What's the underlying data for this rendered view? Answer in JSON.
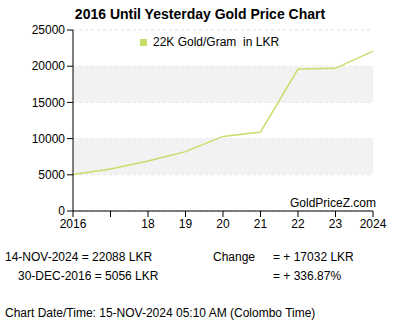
{
  "chart_data": {
    "type": "line",
    "title": "2016 Until Yesterday Gold Price Chart",
    "categories": [
      "2016",
      null,
      "18",
      "19",
      "20",
      "21",
      "22",
      "23",
      "2024"
    ],
    "series": [
      {
        "name": "22K Gold/Gram  in LKR",
        "color": "#c5de6a",
        "values": [
          5056,
          5800,
          6900,
          8200,
          10300,
          10900,
          19600,
          19700,
          22088
        ]
      }
    ],
    "ylim": [
      0,
      25000
    ],
    "yticks": [
      0,
      5000,
      10000,
      15000,
      20000,
      25000
    ],
    "grid": true,
    "annotations": [
      "GoldPriceZ.com",
      "14-NOV-2024 = 22088 LKR",
      "30-DEC-2016 = 5056 LKR",
      "Change",
      "= + 17032 LKR",
      "= + 336.87%",
      "Chart Date/Time: 15-NOV-2024 05:10 AM (Colombo Time)"
    ]
  }
}
